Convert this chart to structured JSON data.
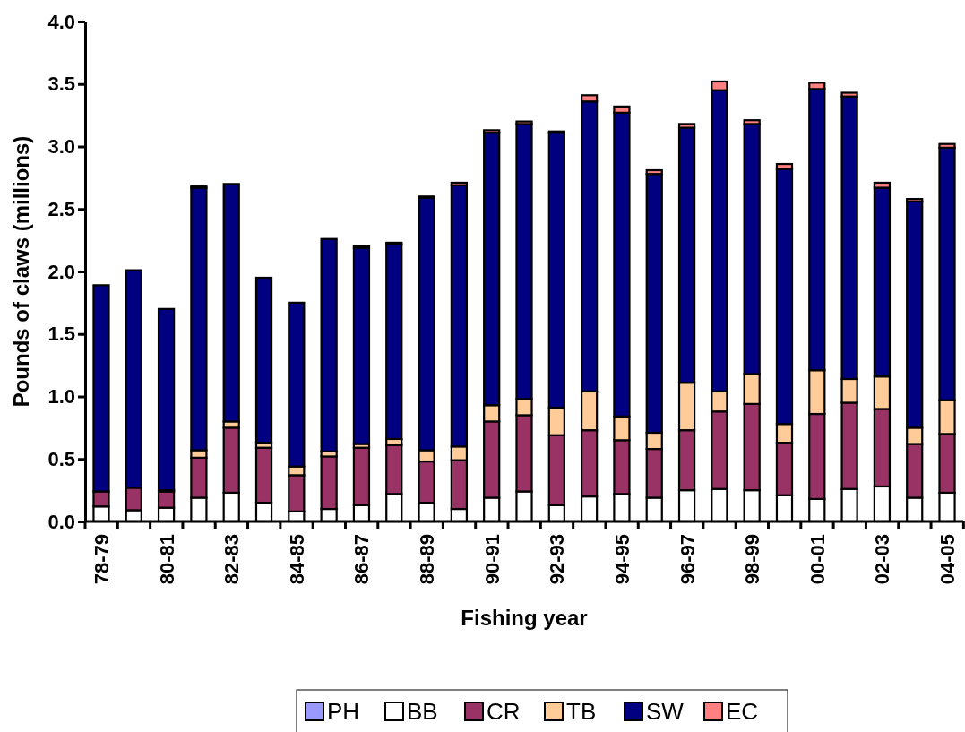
{
  "chart_data": {
    "type": "bar",
    "stacked": true,
    "xlabel": "Fishing year",
    "ylabel": "Pounds of claws (millions)",
    "categories": [
      "78-79",
      null,
      "80-81",
      null,
      "82-83",
      null,
      "84-85",
      null,
      "86-87",
      null,
      "88-89",
      null,
      "90-91",
      null,
      "92-93",
      null,
      "94-95",
      null,
      "96-97",
      null,
      "98-99",
      null,
      "00-01",
      null,
      "02-03",
      null,
      "04-05"
    ],
    "series": [
      {
        "name": "PH",
        "color": "#9999ff",
        "values": [
          0,
          0,
          0,
          0,
          0,
          0,
          0,
          0,
          0,
          0,
          0,
          0,
          0,
          0,
          0,
          0,
          0,
          0,
          0,
          0,
          0,
          0,
          0,
          0,
          0,
          0,
          0
        ]
      },
      {
        "name": "BB",
        "color": "#ffffff",
        "values": [
          0.12,
          0.09,
          0.11,
          0.19,
          0.23,
          0.15,
          0.08,
          0.1,
          0.13,
          0.22,
          0.15,
          0.1,
          0.19,
          0.24,
          0.13,
          0.2,
          0.22,
          0.19,
          0.25,
          0.26,
          0.25,
          0.21,
          0.18,
          0.26,
          0.28,
          0.19,
          0.23
        ]
      },
      {
        "name": "CR",
        "color": "#993366",
        "values": [
          0.12,
          0.18,
          0.13,
          0.32,
          0.52,
          0.44,
          0.29,
          0.42,
          0.46,
          0.39,
          0.33,
          0.39,
          0.61,
          0.61,
          0.56,
          0.53,
          0.43,
          0.39,
          0.48,
          0.62,
          0.69,
          0.42,
          0.68,
          0.69,
          0.62,
          0.43,
          0.47
        ]
      },
      {
        "name": "TB",
        "color": "#ffcc99",
        "values": [
          0,
          0,
          0.01,
          0.06,
          0.05,
          0.04,
          0.07,
          0.04,
          0.03,
          0.05,
          0.09,
          0.11,
          0.13,
          0.13,
          0.22,
          0.31,
          0.19,
          0.13,
          0.38,
          0.16,
          0.24,
          0.15,
          0.35,
          0.19,
          0.26,
          0.13,
          0.27
        ]
      },
      {
        "name": "SW",
        "color": "#000080",
        "values": [
          1.65,
          1.74,
          1.45,
          2.1,
          1.9,
          1.32,
          1.31,
          1.7,
          1.57,
          1.56,
          2.02,
          2.09,
          2.18,
          2.2,
          2.2,
          2.32,
          2.43,
          2.07,
          2.04,
          2.41,
          2.0,
          2.04,
          2.25,
          2.26,
          1.51,
          1.81,
          2.02
        ]
      },
      {
        "name": "EC",
        "color": "#ff8080",
        "values": [
          0,
          0,
          0,
          0.01,
          0,
          0,
          0,
          0,
          0.01,
          0.01,
          0.01,
          0.02,
          0.02,
          0.02,
          0.01,
          0.05,
          0.05,
          0.03,
          0.03,
          0.07,
          0.03,
          0.04,
          0.05,
          0.03,
          0.04,
          0.02,
          0.03
        ]
      }
    ],
    "ylim": [
      0,
      4
    ],
    "yticks": [
      {
        "value": 0,
        "label": "0.0"
      },
      {
        "value": 0.5,
        "label": "0.5"
      },
      {
        "value": 1,
        "label": "1.0"
      },
      {
        "value": 1.5,
        "label": "1.5"
      },
      {
        "value": 2,
        "label": "2.0"
      },
      {
        "value": 2.5,
        "label": "2.5"
      },
      {
        "value": 3,
        "label": "3.0"
      },
      {
        "value": 3.5,
        "label": "3.5"
      },
      {
        "value": 4,
        "label": "4.0"
      }
    ],
    "grid": false,
    "legend": "bottom"
  }
}
